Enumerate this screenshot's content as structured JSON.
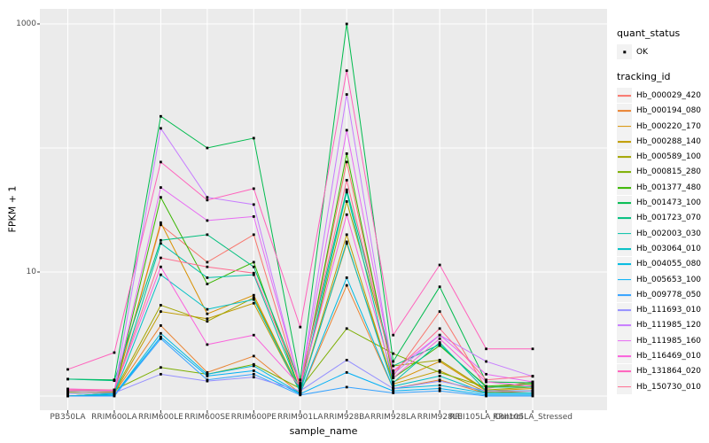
{
  "figure": {
    "y_axis_title": "FPKM + 1",
    "x_axis_title": "sample_name"
  },
  "legend": {
    "quant_status": {
      "title": "quant_status",
      "entries": [
        {
          "label": "OK",
          "marker": "black-point"
        }
      ]
    },
    "tracking_id": {
      "title": "tracking_id"
    }
  },
  "chart_data": {
    "type": "line",
    "title": "",
    "xlabel": "sample_name",
    "ylabel": "FPKM + 1",
    "y_scale": "log10",
    "ylim": [
      0.8,
      1320
    ],
    "grid": true,
    "grid_color": "#FFFFFF",
    "panel_background": "#EBEBEB",
    "point_color": "#000000",
    "tick_color": "#333333",
    "axis_text_color": "#4D4D4D",
    "legend_position": "right",
    "y_axis_breaks": [
      {
        "value": 1000,
        "label": "1000"
      },
      {
        "value": 10,
        "label": "10"
      }
    ],
    "y_gridlines": [
      1000,
      100,
      10,
      1
    ],
    "categories": [
      "PB350LA",
      "RRIM600LA",
      "RRIM600LE",
      "RRIM600SE",
      "RRIM600PE",
      "RRIM901LA",
      "RRIM928BA",
      "RRIM928LA",
      "RRIM928LE",
      "RRII105LA_Control",
      "RRII105LA_Stressed"
    ],
    "series": [
      {
        "name": "Hb_000029_420",
        "color": "#F8766D",
        "values": [
          1.1,
          1.1,
          24,
          12,
          20,
          1.15,
          77,
          1.45,
          4.8,
          1.15,
          1.3
        ]
      },
      {
        "name": "Hb_000194_080",
        "color": "#EA8331",
        "values": [
          1.0,
          1.05,
          3.7,
          1.55,
          2.1,
          1.05,
          7.8,
          1.15,
          1.35,
          1.05,
          1.1
        ]
      },
      {
        "name": "Hb_000220_170",
        "color": "#D89000",
        "values": [
          1.05,
          1.08,
          25,
          4.6,
          6.5,
          1.1,
          17,
          1.3,
          1.9,
          1.1,
          1.15
        ]
      },
      {
        "name": "Hb_000288_140",
        "color": "#C09B00",
        "values": [
          1.0,
          1.05,
          4.8,
          4.2,
          5.6,
          1.08,
          20,
          1.25,
          1.6,
          1.08,
          1.1
        ]
      },
      {
        "name": "Hb_000589_100",
        "color": "#A3A500",
        "values": [
          1.05,
          1.08,
          5.4,
          4.0,
          6.2,
          1.12,
          37,
          1.75,
          1.95,
          1.12,
          1.18
        ]
      },
      {
        "name": "Hb_000815_280",
        "color": "#7CAE00",
        "values": [
          1.08,
          1.12,
          1.7,
          1.5,
          1.8,
          1.15,
          3.5,
          2.2,
          1.55,
          1.18,
          1.22
        ]
      },
      {
        "name": "Hb_001377_480",
        "color": "#39B600",
        "values": [
          1.0,
          1.05,
          40,
          8.0,
          12,
          1.1,
          90,
          1.4,
          2.55,
          1.2,
          1.26
        ]
      },
      {
        "name": "Hb_001473_100",
        "color": "#00BB4E",
        "values": [
          1.37,
          1.35,
          180,
          100,
          120,
          1.35,
          1000,
          1.9,
          7.6,
          1.3,
          1.28
        ]
      },
      {
        "name": "Hb_001723_070",
        "color": "#00BF7D",
        "values": [
          1.37,
          1.33,
          18,
          20,
          11,
          1.28,
          46,
          1.75,
          2.6,
          1.18,
          1.18
        ]
      },
      {
        "name": "Hb_002003_030",
        "color": "#00C1A7",
        "values": [
          1.0,
          1.05,
          17,
          9.0,
          9.5,
          1.1,
          44,
          1.28,
          2.7,
          1.1,
          1.1
        ]
      },
      {
        "name": "Hb_003064_010",
        "color": "#00BFC4",
        "values": [
          1.0,
          1.04,
          9.5,
          5.0,
          6.0,
          1.08,
          17.5,
          1.2,
          1.45,
          1.06,
          1.06
        ]
      },
      {
        "name": "Hb_004055_080",
        "color": "#00BAE0",
        "values": [
          1.0,
          1.02,
          3.2,
          1.5,
          1.75,
          1.05,
          9.0,
          1.15,
          1.22,
          1.05,
          1.05
        ]
      },
      {
        "name": "Hb_005653_100",
        "color": "#00B0F6",
        "values": [
          1.0,
          1.02,
          3.0,
          1.45,
          1.6,
          1.04,
          1.55,
          1.1,
          1.15,
          1.02,
          1.02
        ]
      },
      {
        "name": "Hb_009778_050",
        "color": "#35A2FF",
        "values": [
          1.0,
          1.0,
          2.9,
          1.35,
          1.5,
          1.02,
          1.18,
          1.06,
          1.1,
          1.0,
          1.0
        ]
      },
      {
        "name": "Hb_111693_010",
        "color": "#9590FF",
        "values": [
          1.05,
          1.06,
          1.5,
          1.32,
          1.42,
          1.1,
          1.95,
          1.15,
          1.32,
          1.1,
          1.1
        ]
      },
      {
        "name": "Hb_111985_120",
        "color": "#C77CFF",
        "values": [
          1.1,
          1.1,
          144,
          40,
          35,
          1.2,
          270,
          1.5,
          3.1,
          1.9,
          1.44
        ]
      },
      {
        "name": "Hb_111985_160",
        "color": "#E76BF3",
        "values": [
          1.14,
          1.1,
          48,
          26,
          28,
          1.22,
          139,
          1.6,
          3.1,
          1.5,
          1.3
        ]
      },
      {
        "name": "Hb_116469_010",
        "color": "#FA62DB",
        "values": [
          1.14,
          1.12,
          11,
          2.6,
          3.1,
          1.2,
          29,
          1.4,
          2.9,
          1.3,
          1.2
        ]
      },
      {
        "name": "Hb_131864_020",
        "color": "#FF62BC",
        "values": [
          1.64,
          2.24,
          77,
          38,
          47,
          3.6,
          420,
          3.1,
          11.4,
          2.4,
          2.4
        ]
      },
      {
        "name": "Hb_150730_010",
        "color": "#FF6C90",
        "values": [
          1.12,
          1.12,
          13,
          11,
          9.8,
          1.25,
          55,
          1.55,
          3.5,
          1.35,
          1.45
        ]
      }
    ]
  }
}
